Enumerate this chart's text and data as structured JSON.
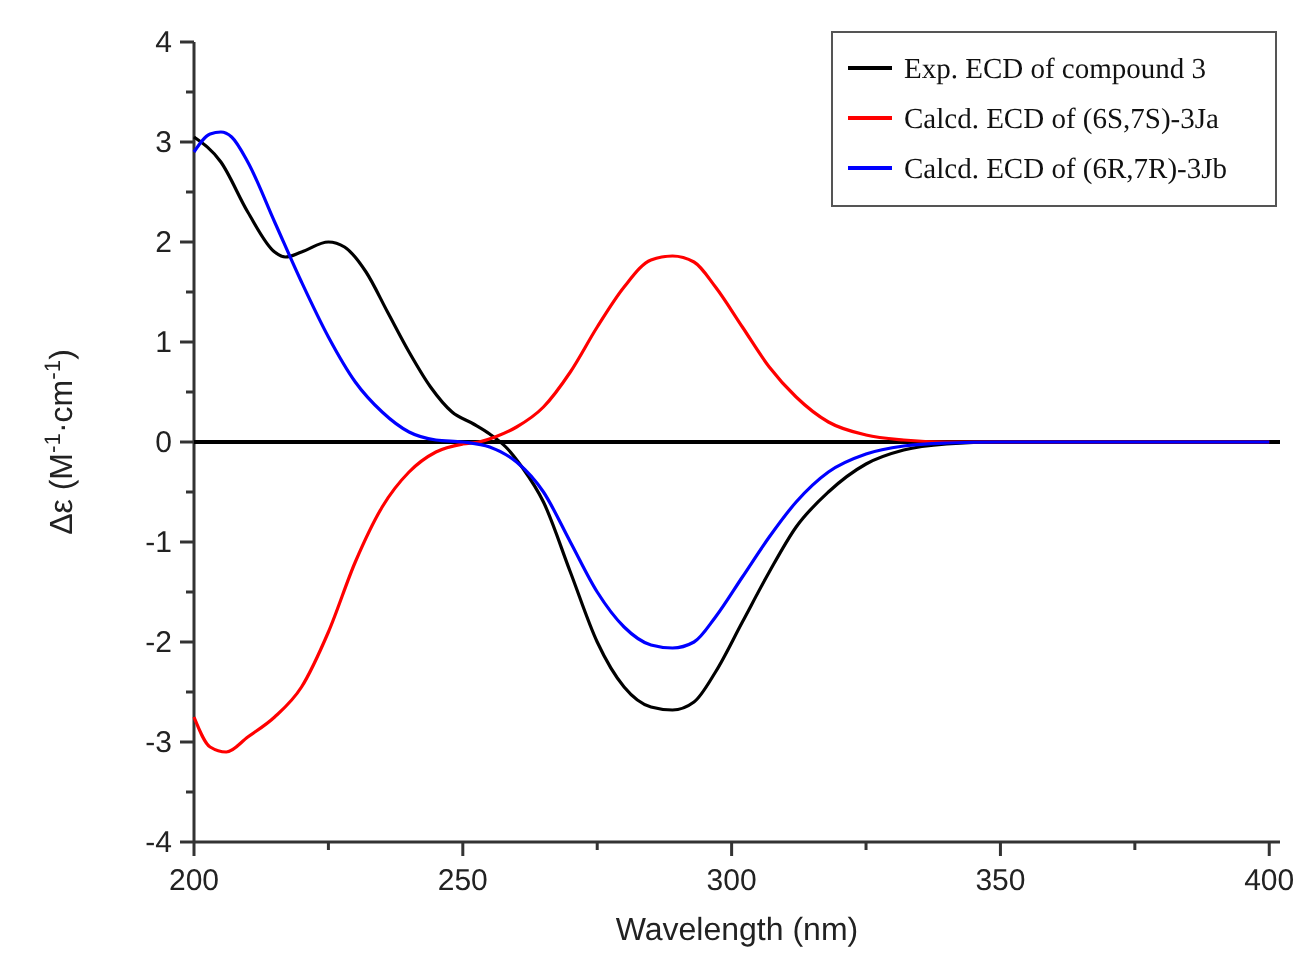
{
  "chart_data": {
    "type": "line",
    "xlabel": "Wavelength (nm)",
    "ylabel": "Δε (M$^{-1}$·cm$^{-1}$)",
    "xlim": [
      200,
      402
    ],
    "ylim": [
      -4,
      4
    ],
    "xticks": [
      200,
      {
        "value": 225,
        "label": null
      },
      250,
      {
        "value": 275,
        "label": null
      },
      300,
      {
        "value": 325,
        "label": null
      },
      350,
      {
        "value": 375,
        "label": null
      },
      400
    ],
    "yticks": [
      -4,
      {
        "value": -3.5,
        "label": null
      },
      -3,
      {
        "value": -2.5,
        "label": null
      },
      -2,
      {
        "value": -1.5,
        "label": null
      },
      -1,
      {
        "value": -0.5,
        "label": null
      },
      0,
      {
        "value": 0.5,
        "label": null
      },
      1,
      {
        "value": 1.5,
        "label": null
      },
      2,
      {
        "value": 2.5,
        "label": null
      },
      3,
      {
        "value": 3.5,
        "label": null
      },
      4
    ],
    "ref_lines": [
      {
        "axis": "y",
        "value": 0,
        "color": "#000000"
      }
    ],
    "legend": "top right",
    "grid": false,
    "marker": "none",
    "line_style": "solid",
    "series": [
      {
        "name": "Exp. ECD of compound 3",
        "color": "#000000",
        "x": [
          200,
          205,
          210,
          215,
          217,
          220,
          225,
          228,
          232,
          236,
          240,
          244,
          248,
          252,
          255,
          258,
          261,
          265,
          270,
          275,
          280,
          285,
          289,
          293,
          297,
          302,
          307,
          312,
          318,
          325,
          332,
          340,
          350,
          400
        ],
        "values": [
          3.05,
          2.8,
          2.3,
          1.9,
          1.85,
          1.9,
          2.0,
          1.95,
          1.7,
          1.3,
          0.9,
          0.55,
          0.3,
          0.18,
          0.08,
          -0.05,
          -0.25,
          -0.6,
          -1.3,
          -2.0,
          -2.45,
          -2.65,
          -2.68,
          -2.6,
          -2.3,
          -1.8,
          -1.3,
          -0.85,
          -0.5,
          -0.22,
          -0.08,
          -0.02,
          0,
          0
        ]
      },
      {
        "name": "Calcd. ECD of (6S,7S)-3Ja",
        "color": "#ff0000",
        "x": [
          200,
          203,
          206,
          210,
          215,
          220,
          225,
          230,
          235,
          240,
          245,
          250,
          253,
          256,
          260,
          265,
          270,
          275,
          280,
          285,
          289,
          293,
          297,
          302,
          307,
          312,
          318,
          325,
          332,
          340,
          400
        ],
        "values": [
          -2.75,
          -3.05,
          -3.1,
          -2.95,
          -2.75,
          -2.45,
          -1.9,
          -1.2,
          -0.65,
          -0.3,
          -0.1,
          -0.02,
          0,
          0.05,
          0.15,
          0.35,
          0.7,
          1.15,
          1.55,
          1.82,
          1.86,
          1.8,
          1.55,
          1.15,
          0.75,
          0.45,
          0.2,
          0.07,
          0.02,
          0,
          0
        ]
      },
      {
        "name": "Calcd. ECD of (6R,7R)-3Jb",
        "color": "#0000ff",
        "x": [
          200,
          203,
          205,
          207,
          210,
          215,
          220,
          225,
          230,
          235,
          240,
          245,
          250,
          255,
          260,
          265,
          270,
          275,
          280,
          285,
          289,
          293,
          297,
          302,
          307,
          312,
          318,
          325,
          332,
          340,
          350,
          400
        ],
        "values": [
          2.9,
          3.08,
          3.1,
          3.05,
          2.8,
          2.2,
          1.6,
          1.05,
          0.6,
          0.3,
          0.1,
          0.02,
          0,
          -0.05,
          -0.2,
          -0.5,
          -1.0,
          -1.5,
          -1.85,
          -2.03,
          -2.06,
          -2.0,
          -1.75,
          -1.35,
          -0.95,
          -0.6,
          -0.3,
          -0.12,
          -0.04,
          -0.01,
          0,
          0
        ]
      }
    ]
  }
}
